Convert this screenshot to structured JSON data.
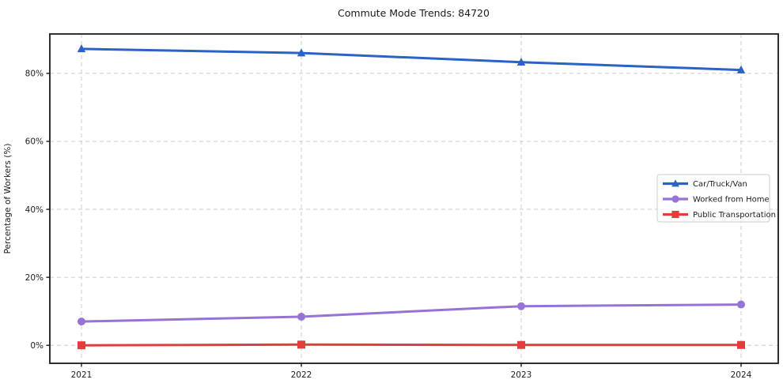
{
  "chart_data": {
    "type": "line",
    "title": "Commute Mode Trends: 84720",
    "xlabel": "",
    "ylabel": "Percentage of Workers (%)",
    "x": [
      "2021",
      "2022",
      "2023",
      "2024"
    ],
    "series": [
      {
        "name": "Car/Truck/Van",
        "values": [
          87.2,
          86.0,
          83.3,
          81.0
        ],
        "color": "#2b62c6",
        "marker": "triangle"
      },
      {
        "name": "Worked from Home",
        "values": [
          7.0,
          8.4,
          11.5,
          12.0
        ],
        "color": "#9673d4",
        "marker": "circle"
      },
      {
        "name": "Public Transportation",
        "values": [
          0.0,
          0.2,
          0.1,
          0.1
        ],
        "color": "#e23c3c",
        "marker": "square"
      }
    ],
    "y_ticks": [
      {
        "value": 0,
        "label": "0%"
      },
      {
        "value": 20,
        "label": "20%"
      },
      {
        "value": 40,
        "label": "40%"
      },
      {
        "value": 60,
        "label": "60%"
      },
      {
        "value": 80,
        "label": "80%"
      }
    ],
    "ylim": [
      -5.3,
      91.6
    ],
    "grid": true,
    "grid_style": "dashed",
    "legend_position": "center-right",
    "colors": {
      "background": "#ffffff",
      "grid": "#cccccc",
      "axis_border": "#1a1a1a",
      "text": "#1d1d1d",
      "legend_border": "#cccccc"
    }
  }
}
